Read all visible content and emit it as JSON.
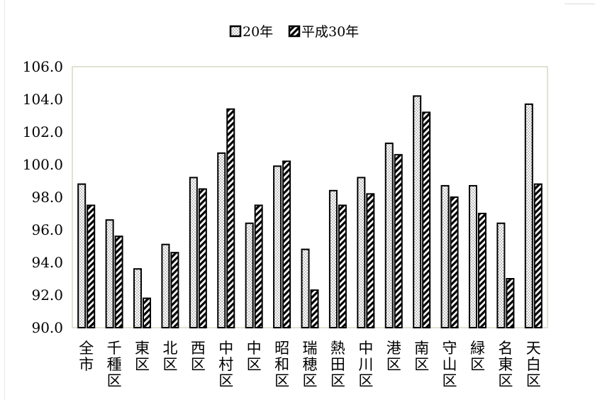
{
  "chart_data": {
    "type": "bar",
    "categories": [
      "全市",
      "千種区",
      "東区",
      "北区",
      "西区",
      "中村区",
      "中区",
      "昭和区",
      "瑞穂区",
      "熱田区",
      "中川区",
      "港区",
      "南区",
      "守山区",
      "緑区",
      "名東区",
      "天白区"
    ],
    "series": [
      {
        "name": "20年",
        "values": [
          98.8,
          96.6,
          93.6,
          95.1,
          99.2,
          100.7,
          96.4,
          99.9,
          94.8,
          98.4,
          99.2,
          101.3,
          104.2,
          98.7,
          98.7,
          96.4,
          103.7
        ],
        "pattern": "dots"
      },
      {
        "name": "平成30年",
        "values": [
          97.5,
          95.6,
          91.8,
          94.6,
          98.5,
          103.4,
          97.5,
          100.2,
          92.3,
          97.5,
          98.2,
          100.6,
          103.2,
          98.0,
          97.0,
          93.0,
          98.8
        ],
        "pattern": "diagonal"
      }
    ],
    "yticks": [
      "106.0",
      "104.0",
      "102.0",
      "100.0",
      "98.0",
      "96.0",
      "94.0",
      "92.0",
      "90.0"
    ],
    "ylim": [
      90,
      106
    ],
    "legend_position": "top-center",
    "grid": false,
    "plot_border_color": "#d9d9c4"
  }
}
